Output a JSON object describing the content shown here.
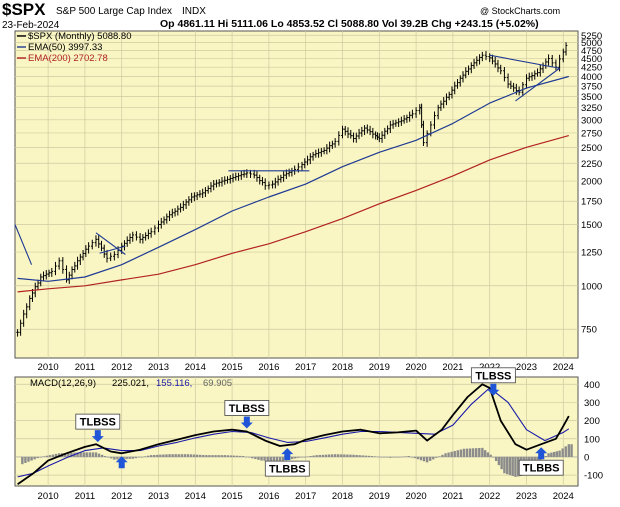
{
  "header": {
    "symbol": "$SPX",
    "name": "S&P 500 Large Cap Index",
    "exchange": "INDX",
    "date": "23-Feb-2024",
    "ohlc": "Op 4861.11  Hi 5111.06  Lo 4853.52  Cl 5088.80  Vol 39.2B  Chg +243.15 (+5.02%)",
    "watermark": "@ StockCharts.com"
  },
  "colors": {
    "panel_bg": "#f9f6c4",
    "price": "#000000",
    "ema50": "#1f3a93",
    "ema200": "#b22222",
    "signal": "#1a1aa8",
    "histogram": "#8c8c8c",
    "arrow": "#1f55d6",
    "trendline": "#1f3a93"
  },
  "chart_data": [
    {
      "type": "line",
      "panel": "price",
      "title": "$SPX S&P 500 Large Cap Index INDX",
      "y_scale": "log",
      "xlim": [
        2009.1,
        2024.4
      ],
      "ylim": [
        620,
        5400
      ],
      "x_ticks": [
        2010,
        2011,
        2012,
        2013,
        2014,
        2015,
        2016,
        2017,
        2018,
        2019,
        2020,
        2021,
        2022,
        2023,
        2024
      ],
      "y_ticks": [
        750,
        1000,
        1250,
        1500,
        1750,
        2000,
        2250,
        2500,
        2750,
        3000,
        3250,
        3500,
        3750,
        4000,
        4250,
        4500,
        4750,
        5000,
        5250
      ],
      "legend": [
        {
          "key": "price",
          "label": "$SPX (Monthly) 5088.80"
        },
        {
          "key": "ema50",
          "label": "EMA(50) 3997.33"
        },
        {
          "key": "ema200",
          "label": "EMA(200) 2702.78"
        }
      ],
      "series": [
        {
          "name": "$SPX (Monthly)",
          "style": "ohlc_bars",
          "x": [
            2009.17,
            2009.5,
            2009.8,
            2010.1,
            2010.3,
            2010.5,
            2010.8,
            2011.1,
            2011.3,
            2011.6,
            2011.8,
            2012.0,
            2012.3,
            2012.5,
            2012.8,
            2013.0,
            2013.3,
            2013.6,
            2013.9,
            2014.2,
            2014.5,
            2014.8,
            2015.1,
            2015.4,
            2015.6,
            2015.9,
            2016.1,
            2016.4,
            2016.7,
            2016.9,
            2017.2,
            2017.5,
            2017.8,
            2018.0,
            2018.3,
            2018.6,
            2018.9,
            2019.0,
            2019.3,
            2019.6,
            2019.9,
            2020.1,
            2020.2,
            2020.4,
            2020.6,
            2020.9,
            2021.2,
            2021.5,
            2021.8,
            2022.0,
            2022.3,
            2022.5,
            2022.8,
            2023.0,
            2023.3,
            2023.6,
            2023.8,
            2024.0,
            2024.15
          ],
          "values": [
            735,
            920,
            1060,
            1100,
            1180,
            1040,
            1180,
            1300,
            1360,
            1200,
            1230,
            1300,
            1400,
            1360,
            1430,
            1500,
            1600,
            1680,
            1800,
            1850,
            1960,
            2010,
            2060,
            2110,
            2080,
            1940,
            1960,
            2080,
            2160,
            2230,
            2380,
            2450,
            2600,
            2820,
            2650,
            2840,
            2700,
            2650,
            2900,
            2980,
            3120,
            3250,
            2580,
            2900,
            3250,
            3550,
            3950,
            4300,
            4600,
            4520,
            4150,
            3800,
            3600,
            3950,
            4100,
            4500,
            4250,
            4700,
            5089
          ]
        },
        {
          "name": "EMA(50)",
          "x": [
            2009.17,
            2010.0,
            2011.0,
            2012.0,
            2013.0,
            2014.0,
            2015.0,
            2016.0,
            2017.0,
            2018.0,
            2019.0,
            2020.0,
            2021.0,
            2022.0,
            2023.0,
            2024.15
          ],
          "values": [
            1050,
            1030,
            1060,
            1150,
            1290,
            1450,
            1640,
            1800,
            1960,
            2200,
            2420,
            2620,
            2930,
            3350,
            3700,
            3997
          ]
        },
        {
          "name": "EMA(200)",
          "x": [
            2009.17,
            2010.0,
            2011.0,
            2012.0,
            2013.0,
            2014.0,
            2015.0,
            2016.0,
            2017.0,
            2018.0,
            2019.0,
            2020.0,
            2021.0,
            2022.0,
            2023.0,
            2024.15
          ],
          "values": [
            960,
            980,
            1000,
            1040,
            1080,
            1150,
            1240,
            1320,
            1430,
            1560,
            1720,
            1880,
            2070,
            2300,
            2500,
            2703
          ]
        }
      ],
      "trendlines": [
        {
          "x": [
            2009.1,
            2009.55
          ],
          "y": [
            1500,
            1150
          ]
        },
        {
          "x": [
            2011.3,
            2012.1
          ],
          "y": [
            1420,
            1230
          ]
        },
        {
          "x": [
            2011.4,
            2012.1
          ],
          "y": [
            1240,
            1300
          ]
        },
        {
          "x": [
            2014.9,
            2017.1
          ],
          "y": [
            2140,
            2140
          ]
        },
        {
          "x": [
            2022.0,
            2023.9
          ],
          "y": [
            4600,
            4220
          ]
        },
        {
          "x": [
            2022.7,
            2023.9
          ],
          "y": [
            3400,
            4220
          ]
        }
      ]
    },
    {
      "type": "line",
      "panel": "macd",
      "title": "MACD(12,26,9) 225.021, 155.116, 69.905",
      "legend_parts": [
        "MACD(12,26,9)",
        "225.021,",
        "155.116,",
        "69.905"
      ],
      "xlim": [
        2009.1,
        2024.4
      ],
      "ylim": [
        -160,
        440
      ],
      "y_ticks": [
        -100,
        0,
        100,
        200,
        300,
        400
      ],
      "x_ticks": [
        2010,
        2011,
        2012,
        2013,
        2014,
        2015,
        2016,
        2017,
        2018,
        2019,
        2020,
        2021,
        2022,
        2023,
        2024
      ],
      "series": [
        {
          "name": "MACD",
          "x": [
            2009.17,
            2009.6,
            2010.0,
            2010.5,
            2011.0,
            2011.3,
            2011.7,
            2012.0,
            2012.5,
            2013.0,
            2013.5,
            2014.0,
            2014.5,
            2015.0,
            2015.4,
            2015.9,
            2016.3,
            2016.7,
            2017.0,
            2017.5,
            2018.0,
            2018.5,
            2019.0,
            2019.5,
            2020.0,
            2020.3,
            2020.7,
            2021.0,
            2021.4,
            2021.8,
            2022.0,
            2022.3,
            2022.7,
            2023.0,
            2023.4,
            2023.8,
            2024.0,
            2024.15
          ],
          "values": [
            -150,
            -90,
            -20,
            20,
            55,
            70,
            30,
            20,
            40,
            70,
            95,
            120,
            140,
            150,
            140,
            90,
            60,
            70,
            95,
            120,
            140,
            150,
            130,
            135,
            145,
            90,
            150,
            230,
            330,
            400,
            380,
            200,
            70,
            40,
            70,
            100,
            170,
            225
          ]
        },
        {
          "name": "Signal",
          "x": [
            2009.17,
            2009.6,
            2010.0,
            2010.5,
            2011.0,
            2011.5,
            2012.0,
            2012.5,
            2013.0,
            2013.5,
            2014.0,
            2014.5,
            2015.0,
            2015.5,
            2016.0,
            2016.5,
            2017.0,
            2017.5,
            2018.0,
            2018.5,
            2019.0,
            2019.5,
            2020.0,
            2020.5,
            2021.0,
            2021.5,
            2022.0,
            2022.5,
            2023.0,
            2023.5,
            2024.0,
            2024.15
          ],
          "values": [
            -110,
            -90,
            -50,
            -5,
            35,
            50,
            35,
            35,
            60,
            80,
            105,
            125,
            140,
            135,
            105,
            80,
            85,
            105,
            125,
            140,
            140,
            135,
            130,
            125,
            175,
            290,
            380,
            300,
            150,
            90,
            135,
            155
          ]
        },
        {
          "name": "Histogram",
          "style": "bars",
          "x": [
            2009.3,
            2009.8,
            2010.3,
            2010.8,
            2011.3,
            2011.8,
            2012.3,
            2012.8,
            2013.3,
            2013.8,
            2014.3,
            2014.8,
            2015.3,
            2015.8,
            2016.3,
            2016.8,
            2017.3,
            2017.8,
            2018.3,
            2018.8,
            2019.3,
            2019.8,
            2020.3,
            2020.8,
            2021.3,
            2021.8,
            2022.1,
            2022.4,
            2022.7,
            2023.0,
            2023.3,
            2023.6,
            2023.9,
            2024.15
          ],
          "values": [
            -40,
            0,
            20,
            25,
            25,
            -15,
            -10,
            10,
            15,
            15,
            10,
            10,
            5,
            -20,
            -25,
            -5,
            10,
            15,
            12,
            5,
            -5,
            5,
            -30,
            20,
            45,
            50,
            0,
            -90,
            -110,
            -100,
            -40,
            20,
            35,
            70
          ]
        }
      ],
      "annotations": [
        {
          "label": "TLBSS",
          "x": 2011.35,
          "arrow": "down"
        },
        {
          "label": "",
          "x": 2012.0,
          "arrow": "up"
        },
        {
          "label": "TLBSS",
          "x": 2015.4,
          "arrow": "down"
        },
        {
          "label": "TLBBS",
          "x": 2016.5,
          "arrow": "up"
        },
        {
          "label": "TLBSS",
          "x": 2022.1,
          "arrow": "down"
        },
        {
          "label": "TLBBS",
          "x": 2023.4,
          "arrow": "up"
        }
      ]
    }
  ]
}
